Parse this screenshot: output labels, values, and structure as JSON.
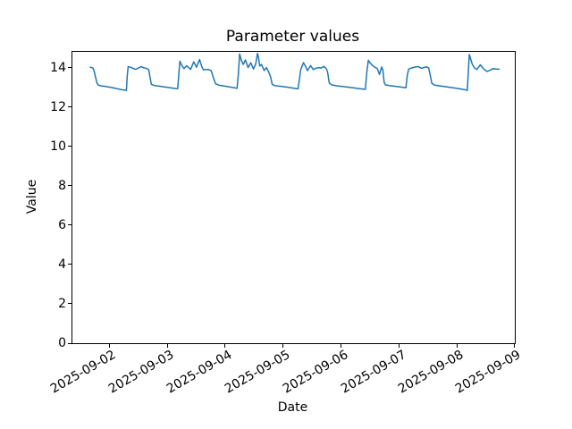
{
  "figure": {
    "title": "Parameter values",
    "xlabel": "Date",
    "ylabel": "Value",
    "background_color": "#ffffff",
    "text_color": "#000000"
  },
  "chart_data": {
    "type": "line",
    "title": "Parameter values",
    "xlabel": "Date",
    "ylabel": "Value",
    "grid": false,
    "legend_position": "none",
    "line_color": "#1f77b4",
    "line_width": 1.5,
    "x_unit": "days from 2025-09-02 00:00",
    "xlim": [
      -0.642,
      6.989
    ],
    "ylim": [
      0,
      14.8
    ],
    "y_ticks": [
      0,
      2,
      4,
      6,
      8,
      10,
      12,
      14
    ],
    "x_tick_positions_days": [
      0,
      1,
      2,
      3,
      4,
      5,
      6,
      7
    ],
    "x_tick_labels": [
      "2025-09-02",
      "2025-09-03",
      "2025-09-04",
      "2025-09-05",
      "2025-09-06",
      "2025-09-07",
      "2025-09-08",
      "2025-09-09"
    ],
    "series": [
      {
        "name": "Parameter values",
        "points": [
          [
            -0.334,
            14.02
          ],
          [
            -0.288,
            13.98
          ],
          [
            -0.265,
            13.8
          ],
          [
            -0.242,
            13.5
          ],
          [
            -0.218,
            13.22
          ],
          [
            -0.195,
            13.11
          ],
          [
            -0.149,
            13.07
          ],
          [
            -0.088,
            13.05
          ],
          [
            -0.026,
            13.02
          ],
          [
            0.051,
            12.98
          ],
          [
            0.128,
            12.93
          ],
          [
            0.189,
            12.89
          ],
          [
            0.251,
            12.86
          ],
          [
            0.289,
            12.84
          ],
          [
            0.305,
            13.6
          ],
          [
            0.32,
            14.05
          ],
          [
            0.358,
            14.02
          ],
          [
            0.405,
            13.96
          ],
          [
            0.451,
            13.91
          ],
          [
            0.497,
            13.98
          ],
          [
            0.543,
            14.05
          ],
          [
            0.589,
            13.99
          ],
          [
            0.635,
            13.96
          ],
          [
            0.674,
            13.89
          ],
          [
            0.697,
            13.5
          ],
          [
            0.72,
            13.15
          ],
          [
            0.774,
            13.09
          ],
          [
            0.866,
            13.05
          ],
          [
            0.958,
            13.01
          ],
          [
            1.051,
            12.97
          ],
          [
            1.128,
            12.94
          ],
          [
            1.174,
            12.93
          ],
          [
            1.197,
            13.8
          ],
          [
            1.212,
            14.33
          ],
          [
            1.243,
            14.12
          ],
          [
            1.282,
            13.95
          ],
          [
            1.328,
            14.09
          ],
          [
            1.366,
            13.99
          ],
          [
            1.397,
            13.91
          ],
          [
            1.451,
            14.29
          ],
          [
            1.497,
            14.02
          ],
          [
            1.551,
            14.41
          ],
          [
            1.589,
            14.06
          ],
          [
            1.62,
            13.88
          ],
          [
            1.666,
            13.91
          ],
          [
            1.712,
            13.89
          ],
          [
            1.751,
            13.85
          ],
          [
            1.789,
            13.5
          ],
          [
            1.828,
            13.18
          ],
          [
            1.882,
            13.11
          ],
          [
            1.974,
            13.06
          ],
          [
            2.066,
            13.02
          ],
          [
            2.143,
            12.98
          ],
          [
            2.197,
            12.95
          ],
          [
            2.22,
            13.6
          ],
          [
            2.243,
            14.69
          ],
          [
            2.274,
            14.35
          ],
          [
            2.305,
            14.16
          ],
          [
            2.343,
            14.39
          ],
          [
            2.389,
            14.0
          ],
          [
            2.435,
            14.24
          ],
          [
            2.482,
            13.93
          ],
          [
            2.52,
            14.18
          ],
          [
            2.551,
            14.72
          ],
          [
            2.566,
            14.55
          ],
          [
            2.589,
            14.08
          ],
          [
            2.62,
            14.16
          ],
          [
            2.666,
            13.85
          ],
          [
            2.705,
            14.0
          ],
          [
            2.743,
            13.78
          ],
          [
            2.774,
            13.55
          ],
          [
            2.805,
            13.15
          ],
          [
            2.851,
            13.08
          ],
          [
            2.943,
            13.05
          ],
          [
            3.051,
            13.01
          ],
          [
            3.158,
            12.96
          ],
          [
            3.251,
            12.92
          ],
          [
            3.274,
            13.4
          ],
          [
            3.297,
            13.9
          ],
          [
            3.343,
            14.25
          ],
          [
            3.382,
            14.05
          ],
          [
            3.412,
            13.84
          ],
          [
            3.466,
            14.1
          ],
          [
            3.512,
            13.9
          ],
          [
            3.558,
            13.97
          ],
          [
            3.605,
            14.0
          ],
          [
            3.651,
            13.98
          ],
          [
            3.697,
            14.06
          ],
          [
            3.735,
            13.96
          ],
          [
            3.758,
            13.8
          ],
          [
            3.789,
            13.22
          ],
          [
            3.835,
            13.12
          ],
          [
            3.928,
            13.07
          ],
          [
            4.051,
            13.03
          ],
          [
            4.189,
            12.98
          ],
          [
            4.312,
            12.93
          ],
          [
            4.412,
            12.9
          ],
          [
            4.435,
            13.7
          ],
          [
            4.462,
            14.37
          ],
          [
            4.497,
            14.22
          ],
          [
            4.538,
            14.1
          ],
          [
            4.574,
            14.02
          ],
          [
            4.615,
            13.96
          ],
          [
            4.655,
            13.65
          ],
          [
            4.692,
            14.03
          ],
          [
            4.712,
            13.9
          ],
          [
            4.735,
            13.25
          ],
          [
            4.758,
            13.12
          ],
          [
            4.84,
            13.08
          ],
          [
            4.95,
            13.04
          ],
          [
            5.05,
            13.0
          ],
          [
            5.112,
            12.98
          ],
          [
            5.135,
            13.6
          ],
          [
            5.158,
            13.92
          ],
          [
            5.205,
            13.98
          ],
          [
            5.266,
            14.03
          ],
          [
            5.328,
            14.05
          ],
          [
            5.374,
            13.96
          ],
          [
            5.42,
            14.0
          ],
          [
            5.466,
            14.04
          ],
          [
            5.505,
            13.98
          ],
          [
            5.528,
            13.65
          ],
          [
            5.558,
            13.2
          ],
          [
            5.605,
            13.11
          ],
          [
            5.712,
            13.06
          ],
          [
            5.835,
            13.01
          ],
          [
            5.958,
            12.96
          ],
          [
            6.066,
            12.91
          ],
          [
            6.151,
            12.86
          ],
          [
            6.169,
            12.84
          ],
          [
            6.178,
            13.3
          ],
          [
            6.205,
            14.66
          ],
          [
            6.255,
            14.17
          ],
          [
            6.292,
            13.99
          ],
          [
            6.332,
            13.9
          ],
          [
            6.394,
            14.14
          ],
          [
            6.462,
            13.9
          ],
          [
            6.512,
            13.8
          ],
          [
            6.558,
            13.86
          ],
          [
            6.615,
            13.95
          ],
          [
            6.666,
            13.93
          ],
          [
            6.717,
            13.92
          ]
        ]
      }
    ]
  }
}
